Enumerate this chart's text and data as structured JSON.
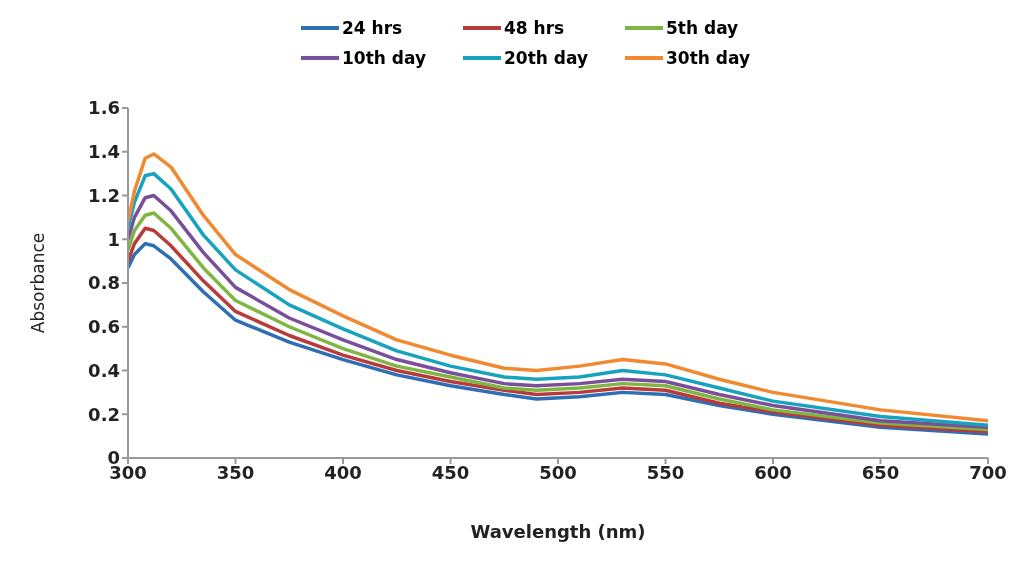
{
  "chart_data": {
    "type": "line",
    "xlabel": "Wavelength (nm)",
    "ylabel": "Absorbance",
    "legend": "top",
    "xlim": [
      300,
      700
    ],
    "xticks": [
      300,
      350,
      400,
      450,
      500,
      550,
      600,
      650,
      700
    ],
    "ylim": [
      0,
      1.6
    ],
    "yticks": [
      0,
      0.2,
      0.4,
      0.6,
      0.8,
      1,
      1.2,
      1.4,
      1.6
    ],
    "x": [
      300,
      303,
      308,
      312,
      320,
      335,
      350,
      375,
      400,
      425,
      450,
      475,
      490,
      510,
      530,
      550,
      575,
      600,
      650,
      700
    ],
    "series": [
      {
        "name": "24 hrs",
        "color": "#2e6eb5",
        "values": [
          0.87,
          0.93,
          0.98,
          0.97,
          0.91,
          0.76,
          0.63,
          0.53,
          0.45,
          0.38,
          0.33,
          0.29,
          0.27,
          0.28,
          0.3,
          0.29,
          0.24,
          0.2,
          0.14,
          0.11
        ]
      },
      {
        "name": "48 hrs",
        "color": "#b83b3b",
        "values": [
          0.9,
          0.98,
          1.05,
          1.04,
          0.97,
          0.81,
          0.67,
          0.56,
          0.47,
          0.4,
          0.35,
          0.31,
          0.29,
          0.3,
          0.32,
          0.31,
          0.25,
          0.21,
          0.15,
          0.12
        ]
      },
      {
        "name": "5th day",
        "color": "#7fb543",
        "values": [
          0.95,
          1.04,
          1.11,
          1.12,
          1.05,
          0.87,
          0.72,
          0.6,
          0.5,
          0.42,
          0.37,
          0.32,
          0.31,
          0.32,
          0.34,
          0.33,
          0.27,
          0.22,
          0.16,
          0.13
        ]
      },
      {
        "name": "10th day",
        "color": "#7a4f9a",
        "values": [
          1.0,
          1.1,
          1.19,
          1.2,
          1.13,
          0.94,
          0.78,
          0.64,
          0.54,
          0.45,
          0.39,
          0.34,
          0.33,
          0.34,
          0.36,
          0.35,
          0.29,
          0.24,
          0.17,
          0.14
        ]
      },
      {
        "name": "20th day",
        "color": "#17a2bd",
        "values": [
          1.05,
          1.17,
          1.29,
          1.3,
          1.23,
          1.02,
          0.86,
          0.7,
          0.59,
          0.49,
          0.42,
          0.37,
          0.36,
          0.37,
          0.4,
          0.38,
          0.32,
          0.26,
          0.19,
          0.15
        ]
      },
      {
        "name": "30th day",
        "color": "#f0892f",
        "values": [
          1.08,
          1.22,
          1.37,
          1.39,
          1.33,
          1.11,
          0.93,
          0.77,
          0.65,
          0.54,
          0.47,
          0.41,
          0.4,
          0.42,
          0.45,
          0.43,
          0.36,
          0.3,
          0.22,
          0.17
        ]
      }
    ]
  }
}
